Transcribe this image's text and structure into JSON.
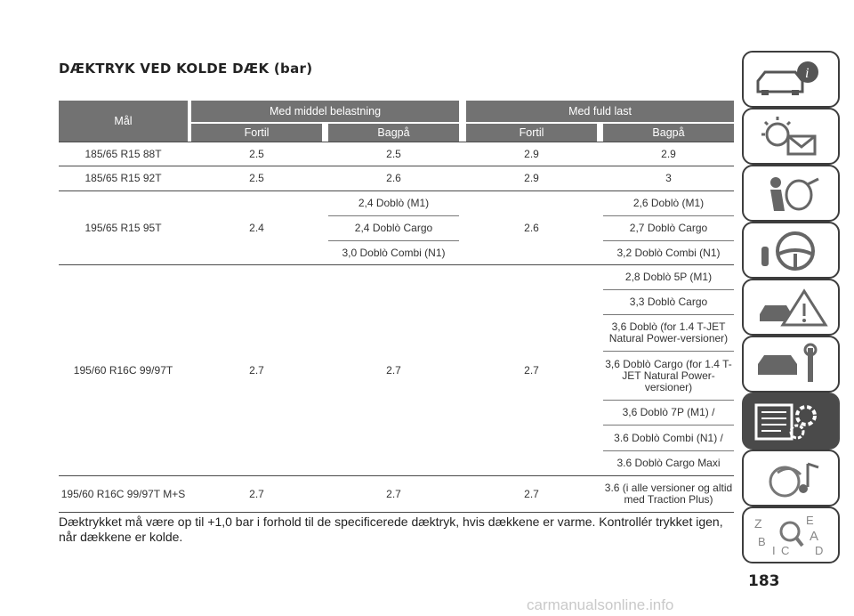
{
  "title": "DÆKTRYK VED KOLDE DÆK (bar)",
  "headers": {
    "size": "Mål",
    "group_medium": "Med middel belastning",
    "group_full": "Med fuld last",
    "front1": "Fortil",
    "rear1": "Bagpå",
    "front2": "Fortil",
    "rear2": "Bagpå"
  },
  "rows": [
    {
      "size": "185/65 R15 88T",
      "m_front": "2.5",
      "m_rear": "2.5",
      "f_front": "2.9",
      "f_rear": "2.9"
    },
    {
      "size": "185/65 R15 92T",
      "m_front": "2.5",
      "m_rear": "2.6",
      "f_front": "2.9",
      "f_rear": "3"
    },
    {
      "size": "195/65 R15 95T",
      "m_front": "2.4",
      "m_rear": [
        "2,4 Doblò (M1)",
        "2,4 Doblò Cargo",
        "3,0 Doblò Combi (N1)"
      ],
      "f_front": "2.6",
      "f_rear": [
        "2,6 Doblò (M1)",
        "2,7 Doblò Cargo",
        "3,2 Doblò Combi (N1)"
      ]
    },
    {
      "size": "195/60 R16C 99/97T",
      "m_front": "2.7",
      "m_rear": "2.7",
      "f_front": "2.7",
      "f_rear": [
        "2,8 Doblò 5P (M1)",
        "3,3 Doblò Cargo",
        "3,6 Doblò (for 1.4 T-JET Natural Power-versioner)",
        "3,6 Doblò Cargo (for 1.4 T-JET Natural Power-versioner)",
        "3,6 Doblò 7P (M1) /",
        "3.6 Doblò Combi (N1) /",
        "3.6 Doblò Cargo Maxi"
      ]
    },
    {
      "size": "195/60 R16C 99/97T M+S",
      "m_front": "2.7",
      "m_rear": "2.7",
      "f_front": "2.7",
      "f_rear": "3.6 (i alle versioner og altid med Traction Plus)"
    }
  ],
  "footnote": "Dæktrykket må være op til +1,0 bar i forhold til de specificerede dæktryk, hvis dækkene er varme. Kontrollér trykket igen, når dækkene er kolde.",
  "page_number": "183",
  "watermark": "carmanualsonline.info",
  "side_tabs": [
    {
      "icon": "car-info-icon",
      "active": false
    },
    {
      "icon": "warning-light-mail-icon",
      "active": false
    },
    {
      "icon": "airbag-safety-icon",
      "active": false
    },
    {
      "icon": "steering-wheel-key-icon",
      "active": false
    },
    {
      "icon": "emergency-warning-triangle-icon",
      "active": false
    },
    {
      "icon": "car-maintenance-wrench-icon",
      "active": false
    },
    {
      "icon": "technical-data-gears-icon",
      "active": true
    },
    {
      "icon": "multimedia-music-icon",
      "active": false
    },
    {
      "icon": "alphabetical-index-icon",
      "active": false
    }
  ],
  "colors": {
    "header_bg": "#727272",
    "active_tab": "#4a4a4a",
    "text": "#222222"
  }
}
